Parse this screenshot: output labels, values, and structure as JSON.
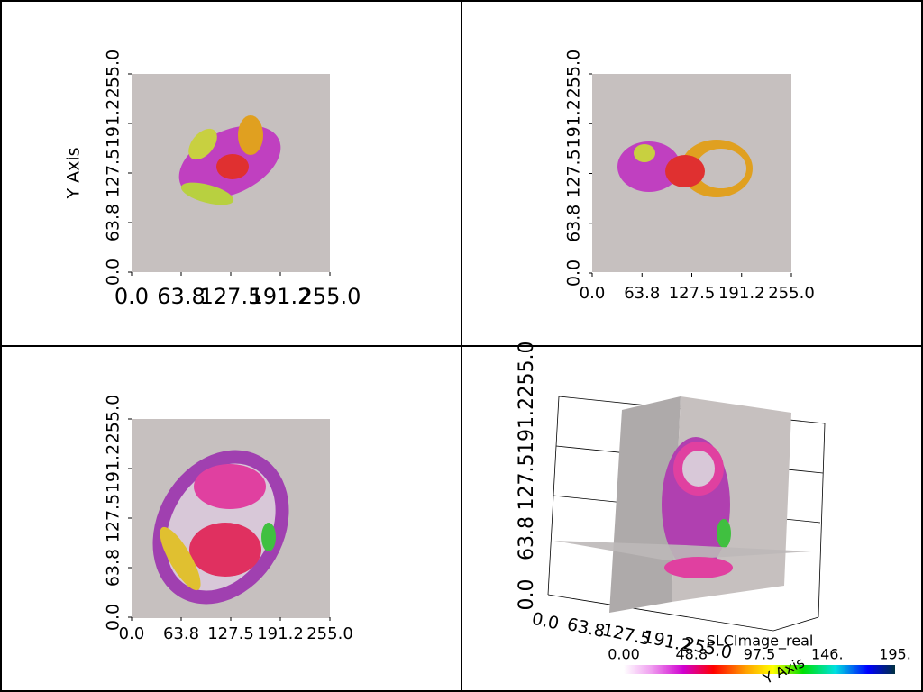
{
  "panels": [
    {
      "y_axis_title": "Y Axis",
      "x_ticks": [
        "0.0",
        "63.8",
        "127.5",
        "191.2",
        "255.0"
      ],
      "y_ticks": [
        "0.0",
        "63.8",
        "127.5",
        "191.2",
        "255.0"
      ]
    },
    {
      "x_ticks": [
        "0.0",
        "63.8",
        "127.5",
        "191.2",
        "255.0"
      ],
      "y_ticks": [
        "0.0",
        "63.8",
        "127.5",
        "191.2",
        "255.0"
      ]
    },
    {
      "x_ticks": [
        "0.0",
        "63.8",
        "127.5",
        "191.2",
        "255.0"
      ],
      "y_ticks": [
        "0.0",
        "63.8",
        "127.5",
        "191.2",
        "255.0"
      ]
    },
    {
      "y_axis_title": "Y Axis",
      "x_ticks": [
        "0.0",
        "63.8",
        "127.5",
        "191.2",
        "255.0"
      ],
      "y_ticks": [
        "0.0",
        "63.8",
        "127.5",
        "191.2",
        "255.0"
      ]
    }
  ],
  "colorbar": {
    "title": "SLCImage_real",
    "labels": [
      "0.00",
      "48.8",
      "97.5",
      "146.",
      "195."
    ]
  }
}
